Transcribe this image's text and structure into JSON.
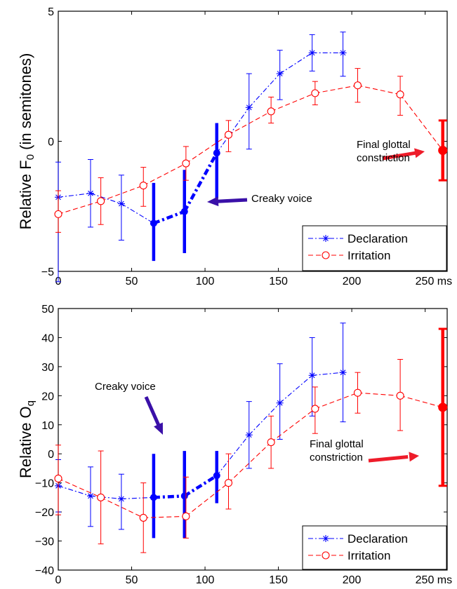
{
  "chart_data": [
    {
      "type": "line",
      "ylabel_main": "Relative F",
      "ylabel_sub": "0",
      "ylabel_tail": " (in semitones)",
      "xlim": [
        0,
        265
      ],
      "ylim": [
        -5,
        5
      ],
      "x_ticks": [
        0,
        50,
        100,
        150,
        200,
        250
      ],
      "x_tick_labels": [
        "0",
        "50",
        "100",
        "150",
        "200",
        "250 ms"
      ],
      "y_ticks": [
        -5,
        0,
        5
      ],
      "y_tick_labels": [
        "−5",
        "0",
        "5"
      ],
      "legend_position": "bottom-right",
      "series": [
        {
          "name": "Declaration",
          "color": "#0000ff",
          "marker": "asterisk",
          "style": "dashdot",
          "x": [
            0,
            22,
            43,
            65,
            86,
            108,
            130,
            151,
            173,
            194
          ],
          "y": [
            -2.15,
            -2.0,
            -2.4,
            -3.15,
            -2.7,
            -0.45,
            1.3,
            2.6,
            3.4,
            3.4
          ],
          "err_low": [
            -5.4,
            -3.3,
            -3.8,
            -4.6,
            -4.3,
            -2.2,
            -0.3,
            1.6,
            2.7,
            2.5
          ],
          "err_high": [
            -0.8,
            -0.7,
            -1.3,
            -1.6,
            -1.1,
            0.7,
            2.6,
            3.5,
            4.1,
            4.2
          ],
          "creaky_range": [
            3,
            5
          ]
        },
        {
          "name": "Irritation",
          "color": "#ff0000",
          "marker": "circle",
          "style": "dashed",
          "x": [
            0,
            29,
            58,
            87,
            116,
            145,
            175,
            204,
            233,
            262
          ],
          "y": [
            -2.8,
            -2.3,
            -1.7,
            -0.85,
            0.25,
            1.15,
            1.85,
            2.15,
            1.8,
            -0.35
          ],
          "err_low": [
            -3.5,
            -3.2,
            -2.5,
            -1.5,
            -0.4,
            0.7,
            1.4,
            1.5,
            1.0,
            -1.5
          ],
          "err_high": [
            -1.9,
            -1.4,
            -1.0,
            -0.2,
            0.8,
            1.7,
            2.3,
            2.8,
            2.5,
            0.8
          ],
          "final_point_index": 9
        }
      ],
      "annotations": [
        {
          "text_lines": [
            "Creaky voice"
          ]
        },
        {
          "text_lines": [
            "Final glottal",
            "constriction"
          ]
        }
      ]
    },
    {
      "type": "line",
      "ylabel_main": "Relative O",
      "ylabel_sub": "q",
      "ylabel_tail": "",
      "xlim": [
        0,
        265
      ],
      "ylim": [
        -40,
        50
      ],
      "x_ticks": [
        0,
        50,
        100,
        150,
        200,
        250
      ],
      "x_tick_labels": [
        "0",
        "50",
        "100",
        "150",
        "200",
        "250 ms"
      ],
      "y_ticks": [
        -40,
        -30,
        -20,
        -10,
        0,
        10,
        20,
        30,
        40,
        50
      ],
      "y_tick_labels": [
        "−40",
        "−30",
        "−20",
        "−10",
        "0",
        "10",
        "20",
        "30",
        "40",
        "50"
      ],
      "legend_position": "bottom-right",
      "series": [
        {
          "name": "Declaration",
          "color": "#0000ff",
          "marker": "asterisk",
          "style": "dashdot",
          "x": [
            0,
            22,
            43,
            65,
            86,
            108,
            130,
            151,
            173,
            194
          ],
          "y": [
            -11,
            -14.5,
            -15.5,
            -15,
            -14.5,
            -7.5,
            6.5,
            17.5,
            27,
            28
          ],
          "err_low": [
            -20,
            -25,
            -26,
            -29,
            -29,
            -17,
            -5,
            5,
            13,
            11
          ],
          "err_high": [
            -2,
            -4.5,
            -7,
            0,
            1,
            1,
            18,
            31,
            40,
            45
          ],
          "creaky_range": [
            3,
            5
          ]
        },
        {
          "name": "Irritation",
          "color": "#ff0000",
          "marker": "circle",
          "style": "dashed",
          "x": [
            0,
            29,
            58,
            87,
            116,
            145,
            175,
            204,
            233,
            262
          ],
          "y": [
            -8.5,
            -15,
            -22,
            -21.5,
            -10,
            4,
            15.5,
            21,
            20,
            16
          ],
          "err_low": [
            -21,
            -31,
            -34,
            -29,
            -19,
            -5,
            7,
            14,
            8,
            -11
          ],
          "err_high": [
            3,
            1,
            -10,
            -8,
            0,
            13,
            23,
            28,
            32.5,
            43
          ],
          "final_point_index": 9
        }
      ],
      "annotations": [
        {
          "text_lines": [
            "Creaky voice"
          ]
        },
        {
          "text_lines": [
            "Final glottal",
            "constriction"
          ]
        }
      ]
    }
  ]
}
